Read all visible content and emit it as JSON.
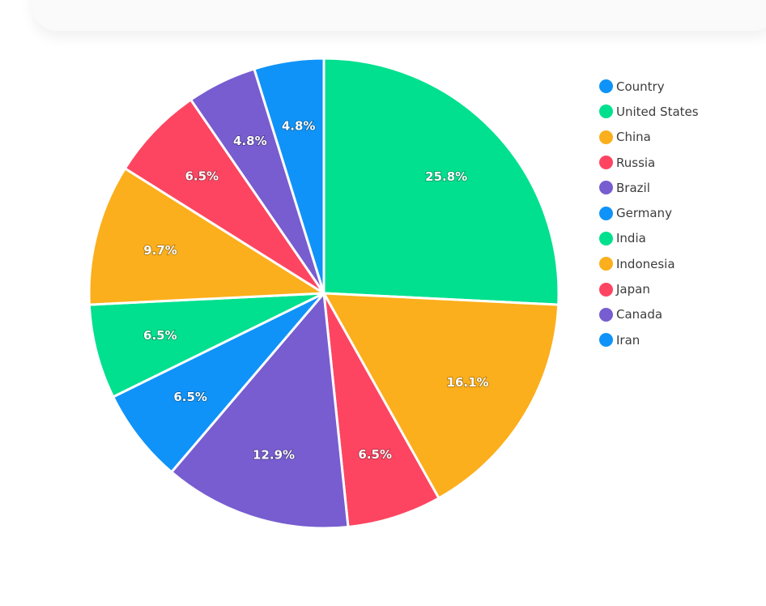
{
  "chart_data": {
    "type": "pie",
    "legend_position": "right",
    "legend": [
      "Country",
      "United States",
      "China",
      "Russia",
      "Brazil",
      "Germany",
      "India",
      "Indonesia",
      "Japan",
      "Canada",
      "Iran"
    ],
    "palette": [
      "#0f93f8",
      "#00e08e",
      "#fbaf1c",
      "#fd4561",
      "#775dd0"
    ],
    "slices": [
      {
        "color": "#00e08e",
        "value": 25.8,
        "label": "25.8%"
      },
      {
        "color": "#fbaf1c",
        "value": 16.1,
        "label": "16.1%"
      },
      {
        "color": "#fd4561",
        "value": 6.5,
        "label": "6.5%"
      },
      {
        "color": "#775dd0",
        "value": 12.9,
        "label": "12.9%"
      },
      {
        "color": "#0f93f8",
        "value": 6.5,
        "label": "6.5%"
      },
      {
        "color": "#00e08e",
        "value": 6.5,
        "label": "6.5%"
      },
      {
        "color": "#fbaf1c",
        "value": 9.7,
        "label": "9.7%"
      },
      {
        "color": "#fd4561",
        "value": 6.5,
        "label": "6.5%"
      },
      {
        "color": "#775dd0",
        "value": 4.8,
        "label": "4.8%"
      },
      {
        "color": "#0f93f8",
        "value": 4.8,
        "label": "4.8%"
      }
    ]
  }
}
